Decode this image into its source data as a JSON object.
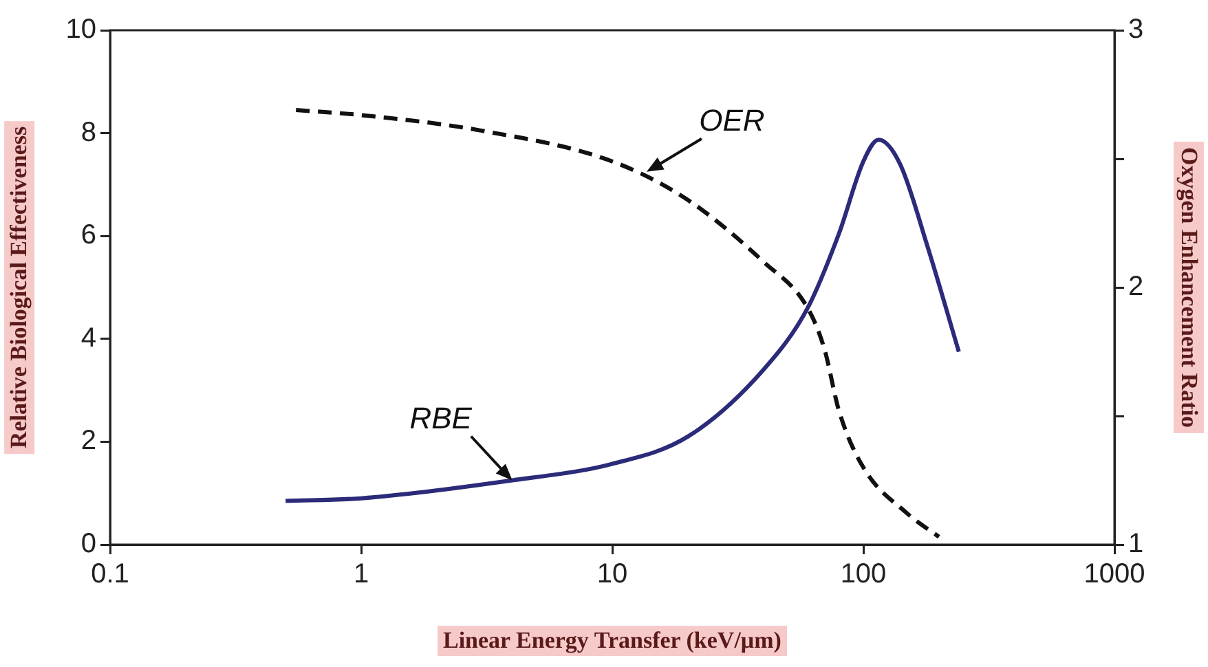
{
  "chart_data": {
    "type": "line",
    "xlabel": "Linear Energy Transfer (keV/μm)",
    "ylabel": "Relative Biological Effectiveness",
    "y2label": "Oxygen Enhancement Ratio",
    "log": "x",
    "xlim": [
      0.1,
      1000
    ],
    "xticks": [
      0.1,
      1,
      10,
      100,
      1000
    ],
    "ylim": [
      0,
      10
    ],
    "yticks": [
      0,
      2,
      4,
      6,
      8,
      10
    ],
    "y2lim": [
      1,
      3
    ],
    "y2ticks": [
      1,
      {
        "value": 1.5,
        "label": null
      },
      2,
      {
        "value": 2.5,
        "label": null
      },
      3
    ],
    "grid": false,
    "legend": false,
    "marker": "none",
    "series": [
      {
        "color": "#2b2b7a",
        "line_style": "solid",
        "x": [
          0.5,
          1,
          4,
          10,
          20,
          40,
          60,
          80,
          100,
          115,
          140,
          180,
          240
        ],
        "values": [
          0.85,
          0.9,
          1.25,
          1.57,
          2.1,
          3.4,
          4.6,
          6.05,
          7.45,
          7.87,
          7.4,
          5.8,
          3.75
        ]
      },
      {
        "color": "#111111",
        "line_style": "dashed",
        "axis": "y2",
        "x": [
          0.55,
          1,
          3,
          10,
          20,
          40,
          60,
          70,
          80,
          100,
          150,
          200
        ],
        "values": [
          2.69,
          2.67,
          2.61,
          2.49,
          2.34,
          2.1,
          1.92,
          1.76,
          1.52,
          1.3,
          1.12,
          1.03
        ]
      }
    ],
    "annotations": [
      {
        "text": "RBE",
        "x": 4,
        "y": 1.25
      },
      {
        "text": "OER",
        "x": 13.7,
        "y": 7.25
      }
    ]
  }
}
